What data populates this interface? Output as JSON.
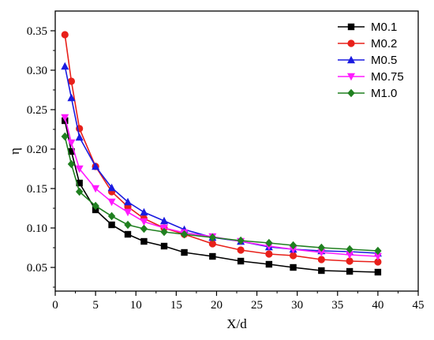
{
  "chart_data": {
    "type": "line",
    "xlabel": "X/d",
    "ylabel": "η",
    "xlim": [
      0,
      45
    ],
    "ylim": [
      0.02,
      0.375
    ],
    "x_ticks": [
      0,
      5,
      10,
      15,
      20,
      25,
      30,
      35,
      40,
      45
    ],
    "y_ticks": [
      0.05,
      0.1,
      0.15,
      0.2,
      0.25,
      0.3,
      0.35
    ],
    "legend_position": "top-right",
    "series": [
      {
        "name": "M0.1",
        "color": "#000000",
        "marker": "square",
        "x": [
          1.2,
          2.0,
          3.0,
          5.0,
          7.0,
          9.0,
          11.0,
          13.5,
          16.0,
          19.5,
          23.0,
          26.5,
          29.5,
          33.0,
          36.5,
          40.0
        ],
        "y": [
          0.236,
          0.197,
          0.157,
          0.123,
          0.104,
          0.092,
          0.083,
          0.077,
          0.069,
          0.064,
          0.058,
          0.054,
          0.05,
          0.046,
          0.045,
          0.044
        ]
      },
      {
        "name": "M0.2",
        "color": "#e8201a",
        "marker": "circle",
        "x": [
          1.2,
          2.0,
          3.0,
          5.0,
          7.0,
          9.0,
          11.0,
          13.5,
          16.0,
          19.5,
          23.0,
          26.5,
          29.5,
          33.0,
          36.5,
          40.0
        ],
        "y": [
          0.345,
          0.286,
          0.226,
          0.178,
          0.146,
          0.127,
          0.112,
          0.1,
          0.092,
          0.08,
          0.072,
          0.067,
          0.065,
          0.06,
          0.058,
          0.057
        ]
      },
      {
        "name": "M0.5",
        "color": "#1a1ae0",
        "marker": "triangle-up",
        "x": [
          1.2,
          2.0,
          3.0,
          5.0,
          7.0,
          9.0,
          11.0,
          13.5,
          16.0,
          19.5,
          23.0,
          26.5,
          29.5,
          33.0,
          36.5,
          40.0
        ],
        "y": [
          0.305,
          0.265,
          0.215,
          0.178,
          0.151,
          0.133,
          0.12,
          0.109,
          0.098,
          0.088,
          0.083,
          0.076,
          0.073,
          0.071,
          0.07,
          0.068
        ]
      },
      {
        "name": "M0.75",
        "color": "#ff1aff",
        "marker": "triangle-down",
        "x": [
          1.2,
          2.0,
          3.0,
          5.0,
          7.0,
          9.0,
          11.0,
          13.5,
          16.0,
          19.5,
          23.0,
          26.5,
          29.5,
          33.0,
          36.5,
          40.0
        ],
        "y": [
          0.24,
          0.208,
          0.175,
          0.15,
          0.133,
          0.12,
          0.108,
          0.1,
          0.094,
          0.089,
          0.083,
          0.077,
          0.073,
          0.069,
          0.066,
          0.064
        ]
      },
      {
        "name": "M1.0",
        "color": "#208020",
        "marker": "diamond",
        "x": [
          1.2,
          2.0,
          3.0,
          5.0,
          7.0,
          9.0,
          11.0,
          13.5,
          16.0,
          19.5,
          23.0,
          26.5,
          29.5,
          33.0,
          36.5,
          40.0
        ],
        "y": [
          0.216,
          0.181,
          0.146,
          0.128,
          0.115,
          0.104,
          0.099,
          0.095,
          0.092,
          0.088,
          0.084,
          0.081,
          0.078,
          0.075,
          0.073,
          0.071
        ]
      }
    ]
  }
}
